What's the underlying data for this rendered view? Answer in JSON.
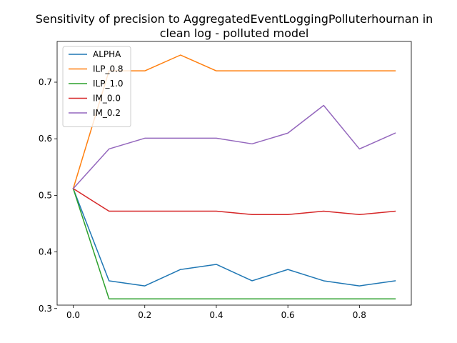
{
  "chart_data": {
    "type": "line",
    "title": [
      "Sensitivity of precision to AggregatedEventLoggingPolluterhournan in",
      "clean log - polluted model"
    ],
    "xlabel": "",
    "ylabel": "",
    "x": [
      0.0,
      0.1,
      0.2,
      0.3,
      0.4,
      0.5,
      0.6,
      0.7,
      0.8,
      0.9
    ],
    "xlim": [
      -0.045,
      0.945
    ],
    "ylim": [
      0.306,
      0.772
    ],
    "xticks": [
      0.0,
      0.2,
      0.4,
      0.6,
      0.8
    ],
    "xtick_labels": [
      "0.0",
      "0.2",
      "0.4",
      "0.6",
      "0.8"
    ],
    "yticks": [
      0.3,
      0.4,
      0.5,
      0.6,
      0.7
    ],
    "ytick_labels": [
      "0.3",
      "0.4",
      "0.5",
      "0.6",
      "0.7"
    ],
    "grid": false,
    "legend_position": "upper-left",
    "series": [
      {
        "name": "ALPHA",
        "color": "#1f77b4",
        "values": [
          0.512,
          0.349,
          0.34,
          0.369,
          0.378,
          0.349,
          0.369,
          0.349,
          0.34,
          0.349
        ]
      },
      {
        "name": "ILP_0.8",
        "color": "#ff7f0e",
        "values": [
          0.512,
          0.72,
          0.72,
          0.748,
          0.72,
          0.72,
          0.72,
          0.72,
          0.72,
          0.72
        ]
      },
      {
        "name": "ILP_1.0",
        "color": "#2ca02c",
        "values": [
          0.512,
          0.317,
          0.317,
          0.317,
          0.317,
          0.317,
          0.317,
          0.317,
          0.317,
          0.317
        ]
      },
      {
        "name": "IM_0.0",
        "color": "#d62728",
        "values": [
          0.512,
          0.472,
          0.472,
          0.472,
          0.472,
          0.466,
          0.466,
          0.472,
          0.466,
          0.472
        ]
      },
      {
        "name": "IM_0.2",
        "color": "#9467bd",
        "values": [
          0.512,
          0.582,
          0.601,
          0.601,
          0.601,
          0.591,
          0.61,
          0.659,
          0.582,
          0.61
        ]
      }
    ]
  }
}
